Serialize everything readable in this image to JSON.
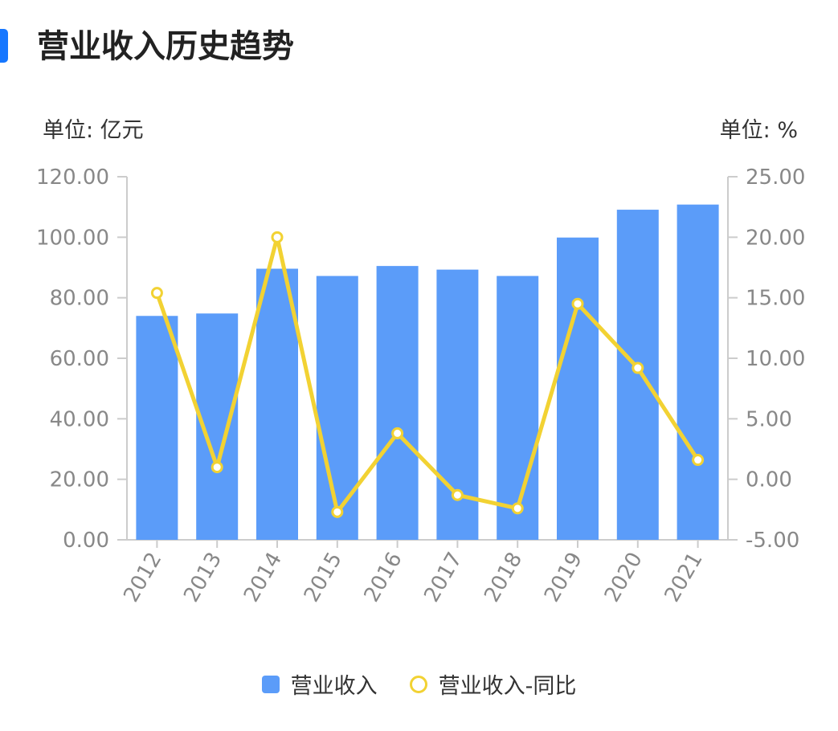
{
  "title": "营业收入历史趋势",
  "unit_left": "单位: 亿元",
  "unit_right": "单位: %",
  "colors": {
    "accent": "#1677ff",
    "bar": "#5b9cf9",
    "line": "#f2d233",
    "axis": "#cccccc"
  },
  "chart_data": {
    "type": "bar",
    "categories": [
      "2012",
      "2013",
      "2014",
      "2015",
      "2016",
      "2017",
      "2018",
      "2019",
      "2020",
      "2021"
    ],
    "series": [
      {
        "name": "营业收入",
        "type": "bar",
        "axis": "left",
        "values": [
          74.0,
          74.8,
          89.6,
          87.2,
          90.5,
          89.3,
          87.2,
          99.9,
          109.1,
          110.8
        ]
      },
      {
        "name": "营业收入-同比",
        "type": "line",
        "axis": "right",
        "values": [
          15.4,
          1.0,
          20.0,
          -2.7,
          3.8,
          -1.3,
          -2.4,
          14.5,
          9.2,
          1.6
        ]
      }
    ],
    "y_left": {
      "min": 0,
      "max": 120,
      "ticks": [
        "0.00",
        "20.00",
        "40.00",
        "60.00",
        "80.00",
        "100.00",
        "120.00"
      ]
    },
    "y_right": {
      "min": -5,
      "max": 25,
      "ticks": [
        "-5.00",
        "0.00",
        "5.00",
        "10.00",
        "15.00",
        "20.00",
        "25.00"
      ]
    },
    "legend": {
      "bar_label": "营业收入",
      "line_label": "营业收入-同比",
      "position": "bottom"
    },
    "grid": false
  }
}
